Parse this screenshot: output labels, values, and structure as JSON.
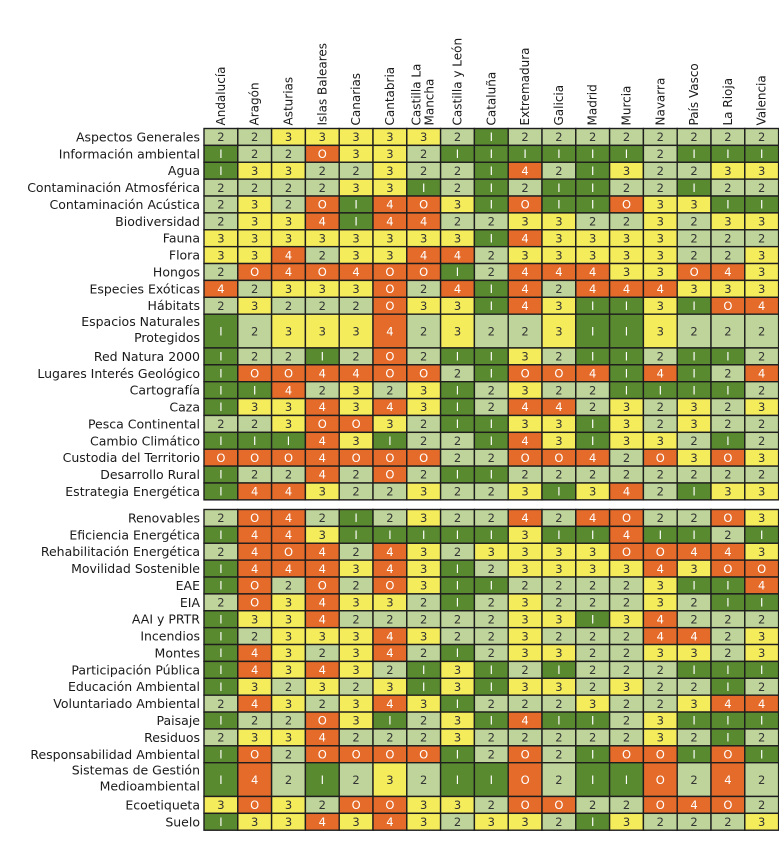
{
  "chart_data": {
    "type": "heatmap",
    "columns": [
      "Andalucía",
      "Aragón",
      "Asturias",
      "Islas Baleares",
      "Canarias",
      "Cantabria",
      "Castilla La Mancha",
      "Castilla y León",
      "Cataluña",
      "Extremadura",
      "Galicia",
      "Madrid",
      "Murcia",
      "Navarra",
      "País Vasco",
      "La Rioja",
      "Valencia"
    ],
    "groups": [
      {
        "rows": [
          {
            "label": "Aspectos Generales",
            "values": [
              2,
              2,
              3,
              3,
              3,
              3,
              3,
              2,
              1,
              2,
              2,
              2,
              2,
              2,
              2,
              2,
              2
            ]
          },
          {
            "label": "Información ambiental",
            "values": [
              1,
              2,
              2,
              0,
              3,
              3,
              2,
              1,
              1,
              1,
              1,
              1,
              1,
              2,
              1,
              1,
              1
            ]
          },
          {
            "label": "Agua",
            "values": [
              1,
              3,
              3,
              2,
              2,
              3,
              2,
              2,
              1,
              4,
              2,
              1,
              3,
              2,
              2,
              3,
              3
            ]
          },
          {
            "label": "Contaminación Atmosférica",
            "values": [
              2,
              2,
              2,
              2,
              3,
              3,
              1,
              2,
              1,
              2,
              1,
              1,
              2,
              2,
              1,
              2,
              2
            ]
          },
          {
            "label": "Contaminación Acústica",
            "values": [
              2,
              3,
              2,
              0,
              1,
              4,
              0,
              3,
              1,
              0,
              1,
              1,
              0,
              3,
              3,
              1,
              1
            ]
          },
          {
            "label": "Biodiversidad",
            "values": [
              2,
              3,
              3,
              4,
              1,
              4,
              4,
              2,
              2,
              3,
              3,
              2,
              2,
              3,
              2,
              3,
              3
            ]
          },
          {
            "label": "Fauna",
            "values": [
              3,
              3,
              3,
              3,
              3,
              3,
              3,
              3,
              1,
              4,
              3,
              3,
              3,
              3,
              2,
              2,
              2
            ]
          },
          {
            "label": "Flora",
            "values": [
              3,
              3,
              4,
              2,
              3,
              3,
              4,
              4,
              2,
              3,
              3,
              3,
              3,
              3,
              2,
              2,
              3
            ]
          },
          {
            "label": "Hongos",
            "values": [
              2,
              0,
              4,
              0,
              4,
              0,
              0,
              1,
              2,
              4,
              4,
              4,
              3,
              3,
              0,
              4,
              3
            ]
          },
          {
            "label": "Especies Exóticas",
            "values": [
              4,
              2,
              3,
              3,
              3,
              0,
              2,
              4,
              1,
              4,
              2,
              4,
              4,
              4,
              3,
              3,
              3
            ]
          },
          {
            "label": "Hábitats",
            "values": [
              2,
              3,
              2,
              2,
              2,
              0,
              3,
              3,
              1,
              4,
              3,
              1,
              1,
              3,
              1,
              0,
              4
            ]
          },
          {
            "label": "Espacios Naturales Protegidos",
            "values": [
              1,
              2,
              3,
              3,
              3,
              4,
              2,
              3,
              2,
              2,
              3,
              1,
              1,
              3,
              2,
              2,
              2
            ]
          },
          {
            "label": "Red Natura 2000",
            "values": [
              1,
              2,
              2,
              1,
              2,
              0,
              2,
              1,
              1,
              3,
              2,
              1,
              1,
              2,
              1,
              1,
              2
            ]
          },
          {
            "label": "Lugares Interés Geológico",
            "values": [
              1,
              0,
              0,
              4,
              4,
              0,
              0,
              2,
              1,
              0,
              0,
              4,
              1,
              4,
              1,
              2,
              4
            ]
          },
          {
            "label": "Cartografía",
            "values": [
              1,
              1,
              4,
              2,
              3,
              2,
              3,
              1,
              2,
              3,
              2,
              2,
              1,
              1,
              1,
              1,
              2
            ]
          },
          {
            "label": "Caza",
            "values": [
              1,
              3,
              3,
              4,
              3,
              4,
              3,
              1,
              2,
              4,
              4,
              2,
              3,
              2,
              3,
              2,
              3
            ]
          },
          {
            "label": "Pesca Continental",
            "values": [
              2,
              2,
              3,
              0,
              0,
              3,
              2,
              1,
              1,
              3,
              3,
              1,
              3,
              2,
              3,
              2,
              2
            ]
          },
          {
            "label": "Cambio Climático",
            "values": [
              1,
              1,
              1,
              4,
              3,
              1,
              2,
              2,
              1,
              4,
              3,
              1,
              3,
              3,
              2,
              1,
              2
            ]
          },
          {
            "label": "Custodia del Territorio",
            "values": [
              0,
              0,
              0,
              4,
              0,
              0,
              0,
              2,
              2,
              0,
              0,
              4,
              2,
              0,
              3,
              0,
              3
            ]
          },
          {
            "label": "Desarrollo Rural",
            "values": [
              1,
              2,
              2,
              4,
              2,
              0,
              2,
              1,
              1,
              2,
              2,
              2,
              2,
              2,
              2,
              2,
              2
            ]
          },
          {
            "label": "Estrategia Energética",
            "values": [
              1,
              4,
              4,
              3,
              2,
              2,
              3,
              2,
              2,
              3,
              1,
              3,
              4,
              2,
              1,
              3,
              3
            ]
          }
        ]
      },
      {
        "rows": [
          {
            "label": "Renovables",
            "values": [
              2,
              0,
              4,
              2,
              1,
              2,
              3,
              2,
              2,
              4,
              2,
              4,
              0,
              2,
              2,
              0,
              3
            ]
          },
          {
            "label": "Eficiencia Energética",
            "values": [
              1,
              4,
              4,
              3,
              1,
              1,
              1,
              1,
              1,
              3,
              1,
              1,
              4,
              1,
              1,
              2,
              1
            ]
          },
          {
            "label": "Rehabilitación Energética",
            "values": [
              2,
              4,
              0,
              4,
              2,
              4,
              3,
              2,
              3,
              3,
              3,
              3,
              0,
              0,
              4,
              4,
              3
            ]
          },
          {
            "label": "Movilidad Sostenible",
            "values": [
              1,
              4,
              4,
              4,
              3,
              4,
              3,
              1,
              2,
              3,
              3,
              3,
              3,
              4,
              3,
              0,
              0
            ]
          },
          {
            "label": "EAE",
            "values": [
              1,
              0,
              2,
              0,
              2,
              0,
              3,
              1,
              1,
              2,
              2,
              2,
              2,
              3,
              1,
              1,
              4
            ]
          },
          {
            "label": "EIA",
            "values": [
              2,
              0,
              3,
              4,
              3,
              3,
              2,
              1,
              2,
              3,
              2,
              2,
              2,
              3,
              2,
              1,
              1
            ]
          },
          {
            "label": "AAI y PRTR",
            "values": [
              1,
              3,
              3,
              4,
              2,
              2,
              2,
              2,
              2,
              3,
              3,
              1,
              3,
              4,
              2,
              2,
              2
            ]
          },
          {
            "label": "Incendios",
            "values": [
              1,
              2,
              3,
              3,
              3,
              4,
              3,
              2,
              2,
              3,
              2,
              2,
              2,
              4,
              4,
              2,
              3
            ]
          },
          {
            "label": "Montes",
            "values": [
              1,
              4,
              3,
              2,
              3,
              4,
              2,
              1,
              2,
              3,
              3,
              2,
              2,
              3,
              3,
              2,
              3
            ]
          },
          {
            "label": "Participación Pública",
            "values": [
              1,
              4,
              3,
              4,
              3,
              2,
              1,
              3,
              1,
              2,
              1,
              2,
              2,
              2,
              1,
              1,
              1
            ]
          },
          {
            "label": "Educación Ambiental",
            "values": [
              1,
              3,
              2,
              3,
              2,
              3,
              1,
              3,
              1,
              3,
              3,
              2,
              3,
              2,
              2,
              1,
              2
            ]
          },
          {
            "label": "Voluntariado Ambiental",
            "values": [
              2,
              4,
              3,
              2,
              3,
              4,
              3,
              1,
              2,
              2,
              2,
              3,
              2,
              2,
              3,
              4,
              4
            ]
          },
          {
            "label": "Paisaje",
            "values": [
              1,
              2,
              2,
              0,
              3,
              1,
              2,
              3,
              1,
              4,
              1,
              1,
              2,
              3,
              1,
              1,
              1
            ]
          },
          {
            "label": "Residuos",
            "values": [
              2,
              3,
              3,
              4,
              2,
              2,
              2,
              3,
              2,
              2,
              2,
              2,
              2,
              3,
              2,
              1,
              2
            ]
          },
          {
            "label": "Responsabilidad Ambiental",
            "values": [
              1,
              0,
              2,
              0,
              0,
              0,
              0,
              1,
              2,
              0,
              2,
              1,
              0,
              0,
              1,
              0,
              1
            ]
          },
          {
            "label": "Sistemas de Gestión Medioambiental",
            "values": [
              1,
              4,
              2,
              1,
              2,
              3,
              2,
              1,
              1,
              0,
              2,
              1,
              1,
              0,
              2,
              4,
              2
            ]
          },
          {
            "label": "Ecoetiqueta",
            "values": [
              3,
              0,
              3,
              2,
              0,
              0,
              3,
              3,
              2,
              0,
              0,
              2,
              2,
              0,
              4,
              0,
              2
            ]
          },
          {
            "label": "Suelo",
            "values": [
              1,
              3,
              3,
              4,
              3,
              4,
              3,
              2,
              3,
              3,
              2,
              1,
              3,
              2,
              2,
              2,
              3
            ]
          }
        ]
      }
    ],
    "value_labels": {
      "0": "O",
      "1": "I",
      "2": "2",
      "3": "3",
      "4": "4"
    },
    "colors": {
      "0": "#e56b2a",
      "1": "#5a8a2f",
      "2": "#bfd49a",
      "3": "#f5ec5c",
      "4": "#e56b2a"
    },
    "text_colors": {
      "0": "#ffffff",
      "1": "#ffffff",
      "2": "#333333",
      "3": "#333333",
      "4": "#ffffff"
    },
    "grid": true,
    "legend": "none"
  }
}
